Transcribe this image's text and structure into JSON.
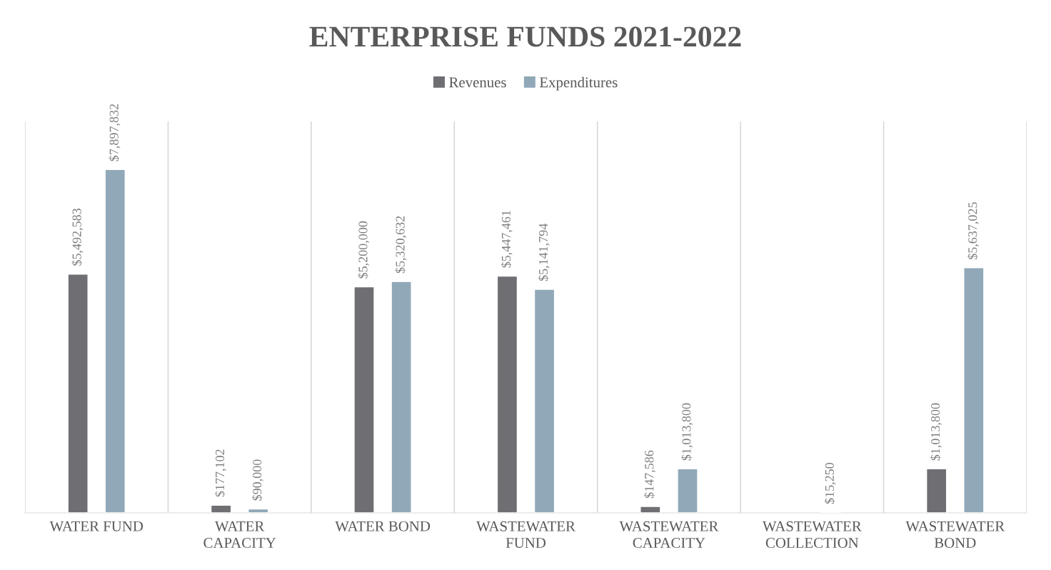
{
  "chart_data": {
    "type": "bar",
    "title": "ENTERPRISE FUNDS 2021-2022",
    "categories": [
      "WATER FUND",
      "WATER CAPACITY",
      "WATER BOND",
      "WASTEWATER FUND",
      "WASTEWATER CAPACITY",
      "WASTEWATER COLLECTION",
      "WASTEWATER BOND"
    ],
    "series": [
      {
        "name": "Revenues",
        "color": "#6f6e73",
        "values": [
          5492583,
          177102,
          5200000,
          5447461,
          147586,
          null,
          1013800
        ],
        "value_labels": [
          "$5,492,583",
          "$177,102",
          "$5,200,000",
          "$5,447,461",
          "$147,586",
          null,
          "$1,013,800"
        ]
      },
      {
        "name": "Expenditures",
        "color": "#91a8b8",
        "values": [
          7897832,
          90000,
          5320632,
          5141794,
          1013800,
          15250,
          5637025
        ],
        "value_labels": [
          "$7,897,832",
          "$90,000",
          "$5,320,632",
          "$5,141,794",
          "$1,013,800",
          "$15,250",
          "$5,637,025"
        ]
      }
    ],
    "grid": "x",
    "legend": "top"
  }
}
